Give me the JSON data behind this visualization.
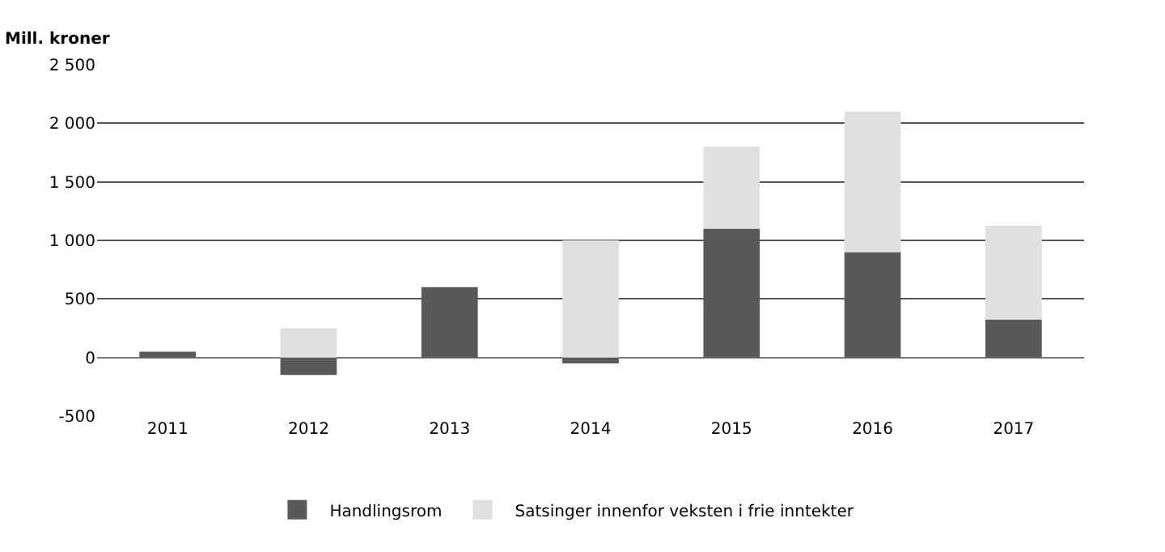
{
  "chart_data": {
    "type": "bar",
    "stacked": true,
    "ylabel": "Mill. kroner",
    "categories": [
      "2011",
      "2012",
      "2013",
      "2014",
      "2015",
      "2016",
      "2017"
    ],
    "series": [
      {
        "name": "Handlingsrom",
        "color": "#595959",
        "values": [
          50,
          -150,
          600,
          -50,
          1100,
          900,
          325
        ]
      },
      {
        "name": "Satsinger innenfor veksten i frie inntekter",
        "color": "#e0e0e0",
        "values": [
          0,
          250,
          0,
          1000,
          700,
          1200,
          800
        ]
      }
    ],
    "ylim": [
      -500,
      2500
    ],
    "yticks": [
      {
        "value": -500,
        "label": "-500"
      },
      0,
      500,
      {
        "value": 1000,
        "label": "1 000"
      },
      {
        "value": 1500,
        "label": "1 500"
      },
      {
        "value": 2000,
        "label": "2 000"
      },
      {
        "value": 2500,
        "label": "2 500"
      }
    ],
    "grid": "y",
    "legend": "bottom"
  }
}
